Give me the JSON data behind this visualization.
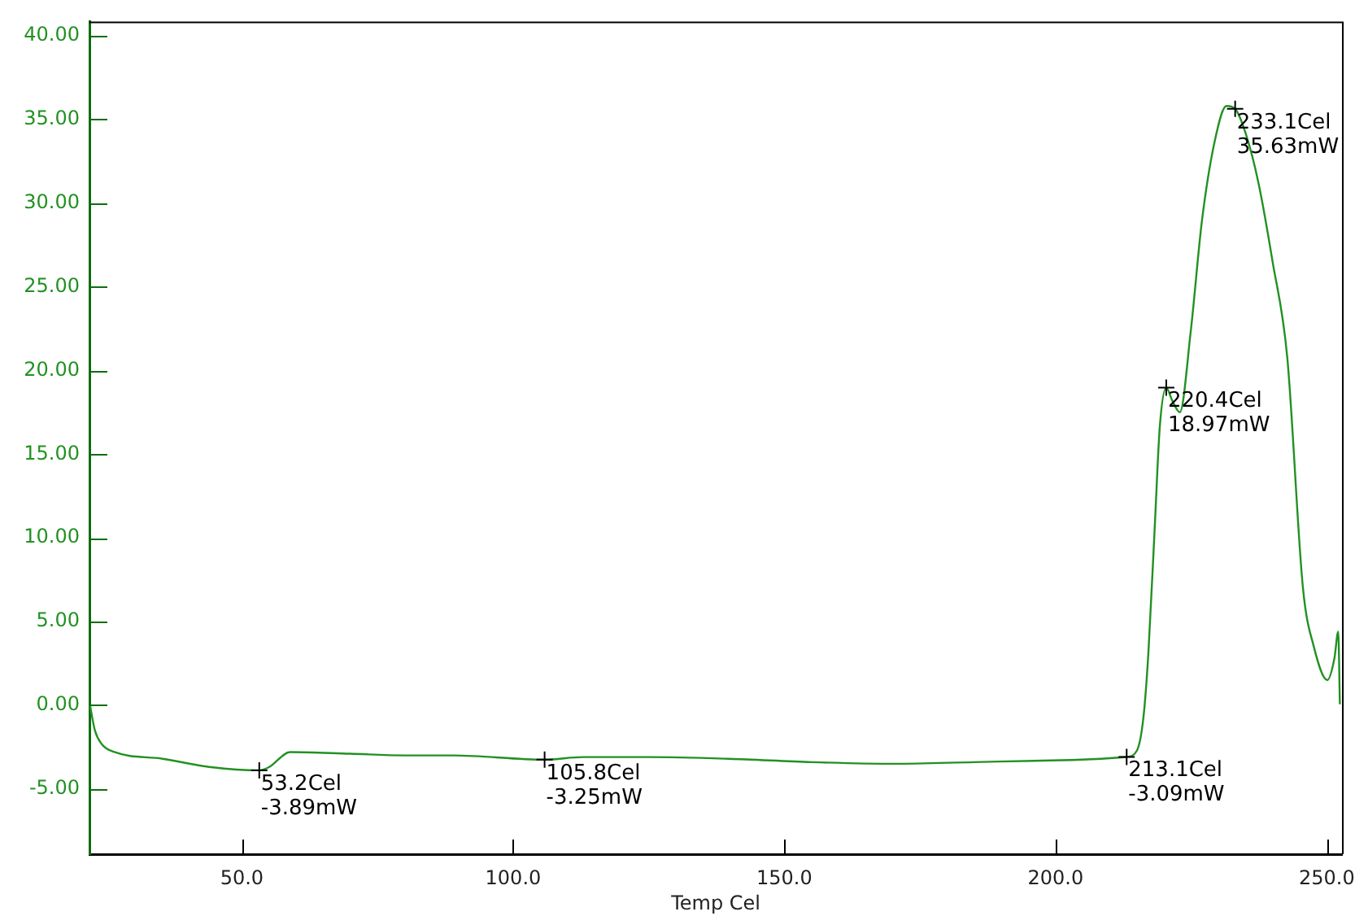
{
  "chart_data": {
    "type": "line",
    "xlabel": "Temp Cel",
    "xlim": [
      21.9,
      252.8
    ],
    "xticks": [
      {
        "value": 50,
        "label": "50.0"
      },
      {
        "value": 100,
        "label": "100.0"
      },
      {
        "value": 150,
        "label": "150.0"
      },
      {
        "value": 200,
        "label": "200.0"
      },
      {
        "value": 250,
        "label": "250.0"
      }
    ],
    "ylim": [
      -8.9,
      40.85
    ],
    "yticks": [
      {
        "value": -5,
        "label": "-5.00"
      },
      {
        "value": 0,
        "label": "0.00"
      },
      {
        "value": 5,
        "label": "5.00"
      },
      {
        "value": 10,
        "label": "10.00"
      },
      {
        "value": 15,
        "label": "15.00"
      },
      {
        "value": 20,
        "label": "20.00"
      },
      {
        "value": 25,
        "label": "25.00"
      },
      {
        "value": 30,
        "label": "30.00"
      },
      {
        "value": 35,
        "label": "35.00"
      },
      {
        "value": 40,
        "label": "40.00"
      }
    ],
    "grid": false,
    "legend": false,
    "marker": "none",
    "line_style": "solid",
    "series": [
      {
        "color": "#229122",
        "x": [
          22.0,
          22.9,
          24.1,
          26.5,
          35.4,
          44.3,
          53.2,
          55.0,
          58.9,
          70,
          80,
          89,
          105.8,
          112.9,
          125,
          139.7,
          155,
          170.3,
          185,
          199.2,
          213.1,
          215.0,
          216.2,
          217.1,
          218.3,
          219.2,
          220.4,
          221.5,
          222.9,
          224.9,
          227.0,
          229.4,
          231.5,
          233.1,
          235.0,
          237.4,
          240.0,
          242.7,
          245.6,
          247.6,
          250.1,
          251.4,
          252.1,
          252.4
        ],
        "values": [
          0,
          -1.5,
          -2.3,
          -2.8,
          -3.2,
          -3.7,
          -3.89,
          -3.7,
          -2.8,
          -2.9,
          -3.0,
          -3.0,
          -3.25,
          -3.1,
          -3.1,
          -3.2,
          -3.4,
          -3.5,
          -3.4,
          -3.3,
          -3.09,
          -2.7,
          -0.7,
          3.1,
          10.8,
          16.6,
          18.97,
          18.2,
          17.5,
          22.3,
          29.0,
          33.8,
          35.8,
          35.63,
          34.2,
          31.2,
          26.5,
          20.8,
          7.0,
          3.5,
          1.5,
          2.8,
          4.4,
          0.1
        ]
      }
    ],
    "annotations": [
      {
        "text": "53.2Cel\n-3.89mW",
        "x": 53.2,
        "y": -3.89
      },
      {
        "text": "105.8Cel\n-3.25mW",
        "x": 105.8,
        "y": -3.25
      },
      {
        "text": "213.1Cel\n-3.09mW",
        "x": 213.1,
        "y": -3.09
      },
      {
        "text": "220.4Cel\n18.97mW",
        "x": 220.4,
        "y": 18.97
      },
      {
        "text": "233.1Cel\n35.63mW",
        "x": 233.1,
        "y": 35.63
      }
    ]
  }
}
